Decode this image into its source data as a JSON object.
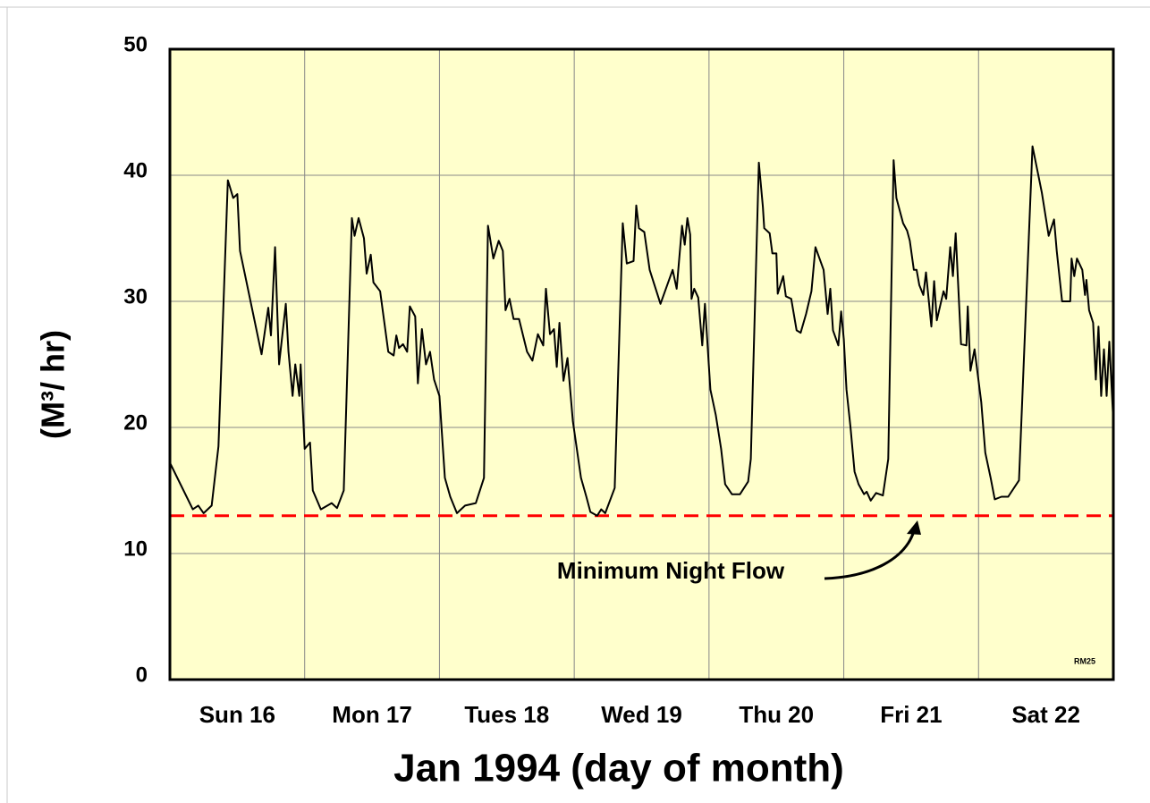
{
  "chart_data": {
    "type": "line",
    "categories": [
      "Sun 16",
      "Mon 17",
      "Tues 18",
      "Wed 19",
      "Thu 20",
      "Fri 21",
      "Sat 22"
    ],
    "x_title": "Jan 1994 (day of month)",
    "y_title": "(M³/ hr)",
    "annotation": "Minimum Night Flow",
    "reference_line": 13,
    "reference_color": "#ff0000",
    "note": "RM25",
    "color": "#000000",
    "background": "#ffffcc",
    "grid": true,
    "xlim": [
      16,
      23
    ],
    "ylim": [
      0,
      50
    ],
    "yticks": [
      0,
      10,
      20,
      30,
      40,
      50
    ],
    "x": [
      16.0,
      16.17,
      16.21,
      16.25,
      16.31,
      16.36,
      16.43,
      16.47,
      16.5,
      16.52,
      16.68,
      16.73,
      16.75,
      16.78,
      16.81,
      16.86,
      16.88,
      16.91,
      16.93,
      16.96,
      16.97,
      17.0,
      17.04,
      17.06,
      17.12,
      17.2,
      17.24,
      17.29,
      17.35,
      17.37,
      17.4,
      17.44,
      17.46,
      17.49,
      17.51,
      17.56,
      17.62,
      17.66,
      17.68,
      17.7,
      17.73,
      17.76,
      17.78,
      17.82,
      17.84,
      17.87,
      17.9,
      17.93,
      17.96,
      18.0,
      18.04,
      18.08,
      18.13,
      18.16,
      18.19,
      18.27,
      18.33,
      18.36,
      18.4,
      18.44,
      18.47,
      18.49,
      18.52,
      18.55,
      18.59,
      18.62,
      18.65,
      18.69,
      18.73,
      18.77,
      18.79,
      18.82,
      18.85,
      18.87,
      18.89,
      18.92,
      18.95,
      18.99,
      19.05,
      19.09,
      19.12,
      19.17,
      19.2,
      19.23,
      19.3,
      19.36,
      19.39,
      19.44,
      19.46,
      19.48,
      19.52,
      19.56,
      19.64,
      19.73,
      19.76,
      19.8,
      19.82,
      19.84,
      19.86,
      19.87,
      19.89,
      19.92,
      19.95,
      19.97,
      20.01,
      20.05,
      20.09,
      20.12,
      20.17,
      20.23,
      20.29,
      20.31,
      20.37,
      20.4,
      20.41,
      20.45,
      20.47,
      20.5,
      20.51,
      20.55,
      20.57,
      20.61,
      20.65,
      20.68,
      20.72,
      20.76,
      20.79,
      20.85,
      20.88,
      20.9,
      20.92,
      20.96,
      20.98,
      21.0,
      21.02,
      21.05,
      21.08,
      21.11,
      21.15,
      21.17,
      21.2,
      21.24,
      21.29,
      21.33,
      21.37,
      21.39,
      21.44,
      21.47,
      21.49,
      21.52,
      21.54,
      21.56,
      21.59,
      21.61,
      21.65,
      21.67,
      21.69,
      21.74,
      21.76,
      21.79,
      21.81,
      21.83,
      21.85,
      21.87,
      21.91,
      21.92,
      21.94,
      21.97,
      22.02,
      22.05,
      22.09,
      22.12,
      22.17,
      22.22,
      22.3,
      22.4,
      22.47,
      22.52,
      22.56,
      22.58,
      22.62,
      22.68,
      22.69,
      22.71,
      22.73,
      22.77,
      22.79,
      22.8,
      22.82,
      22.85,
      22.87,
      22.89,
      22.91,
      22.93,
      22.95,
      22.97,
      23.0
    ],
    "values": [
      17.2,
      13.5,
      13.8,
      13.2,
      13.8,
      18.5,
      39.6,
      38.2,
      38.5,
      34,
      25.8,
      29.5,
      27.3,
      34.3,
      25,
      29.8,
      26,
      22.5,
      25,
      22.5,
      25,
      18.3,
      18.8,
      15,
      13.5,
      14,
      13.6,
      15,
      36.6,
      35.2,
      36.6,
      35,
      32.2,
      33.7,
      31.5,
      30.8,
      26,
      25.7,
      27.3,
      26.3,
      26.6,
      26,
      29.6,
      28.8,
      23.5,
      27.8,
      25,
      26,
      23.8,
      22.5,
      16,
      14.5,
      13.2,
      13.5,
      13.8,
      14,
      16,
      36,
      33.4,
      34.8,
      34,
      29.3,
      30.2,
      28.6,
      28.6,
      27.3,
      26,
      25.3,
      27.4,
      26.5,
      31,
      27.4,
      27.8,
      24.8,
      28.3,
      23.7,
      25.5,
      20.5,
      16,
      14.5,
      13.3,
      13,
      13.5,
      13.2,
      15.2,
      36.2,
      33,
      33.2,
      37.6,
      35.8,
      35.5,
      32.5,
      29.8,
      32.5,
      31,
      36,
      34.5,
      36.6,
      35.3,
      30.2,
      31,
      30.3,
      26.5,
      29.8,
      23,
      21,
      18.3,
      15.5,
      14.7,
      14.7,
      15.7,
      17.5,
      41,
      37.5,
      35.8,
      35.4,
      33.8,
      33.8,
      30.6,
      32,
      30.4,
      30.2,
      27.7,
      27.5,
      29,
      30.8,
      34.3,
      32.5,
      29,
      31,
      27.7,
      26.5,
      29.2,
      27,
      23,
      20,
      16.5,
      15.5,
      14.7,
      14.9,
      14.2,
      14.8,
      14.6,
      17.5,
      41.2,
      38.2,
      36.2,
      35.6,
      34.8,
      32.5,
      32.5,
      31.3,
      30.5,
      32.3,
      28,
      31.6,
      28.5,
      30.8,
      30.2,
      34.3,
      32,
      35.4,
      31,
      26.6,
      26.5,
      29.6,
      24.5,
      26.2,
      22,
      18,
      16,
      14.3,
      14.5,
      14.5,
      15.8,
      42.3,
      38.6,
      35.2,
      36.5,
      34,
      30,
      30,
      33.4,
      32,
      33.4,
      32.5,
      30.5,
      31.7,
      29.3,
      28.3,
      23.8,
      28,
      22.5,
      26.2,
      22.5,
      26.8,
      20.5
    ]
  }
}
